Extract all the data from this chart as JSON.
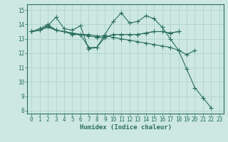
{
  "title": "",
  "xlabel": "Humidex (Indice chaleur)",
  "bg_color": "#cce8e0",
  "grid_color": "#aacfc8",
  "line_color": "#2a6e60",
  "xlim": [
    -0.5,
    23.5
  ],
  "ylim": [
    7.8,
    15.4
  ],
  "yticks": [
    8,
    9,
    10,
    11,
    12,
    13,
    14,
    15
  ],
  "xticks": [
    0,
    1,
    2,
    3,
    4,
    5,
    6,
    7,
    8,
    9,
    10,
    11,
    12,
    13,
    14,
    15,
    16,
    17,
    18,
    19,
    20,
    21,
    22,
    23
  ],
  "series": [
    [
      13.5,
      13.6,
      13.9,
      14.5,
      13.7,
      13.6,
      13.9,
      12.3,
      12.4,
      13.3,
      14.2,
      14.8,
      14.1,
      14.2,
      14.6,
      14.4,
      13.8,
      13.0,
      12.2,
      10.9,
      9.6,
      8.9,
      8.2,
      null
    ],
    [
      13.5,
      13.6,
      13.9,
      13.6,
      13.5,
      13.4,
      13.3,
      13.3,
      13.2,
      13.2,
      13.1,
      13.0,
      12.9,
      12.8,
      12.7,
      12.6,
      12.5,
      12.4,
      12.2,
      11.9,
      12.2,
      null,
      null,
      null
    ],
    [
      13.5,
      13.7,
      14.0,
      13.6,
      13.5,
      13.3,
      13.3,
      13.2,
      13.1,
      13.1,
      13.3,
      13.3,
      13.3,
      13.3,
      13.4,
      13.5,
      13.5,
      13.4,
      13.5,
      null,
      null,
      null,
      null,
      null
    ],
    [
      13.5,
      13.6,
      13.8,
      13.6,
      13.5,
      13.4,
      13.3,
      12.4,
      12.4,
      13.1,
      13.3,
      13.3,
      13.3,
      13.3,
      13.4,
      13.5,
      13.5,
      13.4,
      13.5,
      null,
      null,
      null,
      null,
      null
    ]
  ]
}
